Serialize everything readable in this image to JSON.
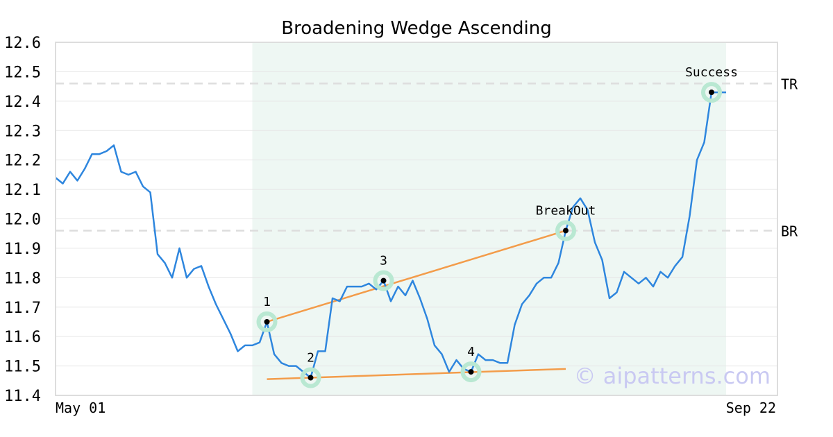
{
  "chart_data": {
    "type": "line",
    "title": "Broadening Wedge Ascending",
    "ylim": [
      11.4,
      12.6
    ],
    "y_ticks": [
      "12.6",
      "12.5",
      "12.4",
      "12.3",
      "12.2",
      "12.1",
      "12.0",
      "11.9",
      "11.8",
      "11.7",
      "11.6",
      "11.5",
      "11.4"
    ],
    "x_tick_labels": [
      "May 01",
      "Sep 22"
    ],
    "grid": true,
    "series": [
      {
        "values": [
          12.14,
          12.12,
          12.16,
          12.13,
          12.17,
          12.22,
          12.22,
          12.23,
          12.25,
          12.16,
          12.15,
          12.16,
          12.11,
          12.09,
          11.88,
          11.85,
          11.8,
          11.9,
          11.8,
          11.83,
          11.84,
          11.77,
          11.71,
          11.66,
          11.61,
          11.55,
          11.57,
          11.57,
          11.58,
          11.65,
          11.54,
          11.51,
          11.5,
          11.5,
          11.48,
          11.46,
          11.55,
          11.55,
          11.73,
          11.72,
          11.77,
          11.77,
          11.77,
          11.78,
          11.76,
          11.79,
          11.72,
          11.77,
          11.74,
          11.79,
          11.73,
          11.66,
          11.57,
          11.54,
          11.48,
          11.52,
          11.49,
          11.48,
          11.54,
          11.52,
          11.52,
          11.51,
          11.51,
          11.64,
          11.71,
          11.74,
          11.78,
          11.8,
          11.8,
          11.85,
          11.96,
          12.04,
          12.07,
          12.03,
          11.92,
          11.86,
          11.73,
          11.75,
          11.82,
          11.8,
          11.78,
          11.8,
          11.77,
          11.82,
          11.8,
          11.84,
          11.87,
          12.01,
          12.2,
          12.26,
          12.43,
          12.43,
          12.43
        ]
      }
    ],
    "highlight_range": [
      27,
      92
    ],
    "reference_lines": [
      {
        "label": "TR",
        "value": 12.46
      },
      {
        "label": "BR",
        "value": 11.96
      }
    ],
    "points": [
      {
        "label": "1",
        "index": 29,
        "value": 11.65
      },
      {
        "label": "2",
        "index": 35,
        "value": 11.46
      },
      {
        "label": "3",
        "index": 45,
        "value": 11.79
      },
      {
        "label": "4",
        "index": 57,
        "value": 11.48
      },
      {
        "label": "BreakOut",
        "index": 70,
        "value": 11.96
      },
      {
        "label": "Success",
        "index": 90,
        "value": 12.43
      }
    ],
    "trendlines": [
      {
        "from": [
          29,
          11.65
        ],
        "to": [
          70,
          11.96
        ]
      },
      {
        "from": [
          29,
          11.455
        ],
        "to": [
          70,
          11.49
        ]
      }
    ],
    "watermark": "© aipatterns.com",
    "colors": {
      "line": "#2e86de",
      "trend": "#f39c4a",
      "highlight": "#eef7f3",
      "marker_ring": "#b9e8d2",
      "grid": "#e6e6e6",
      "reference": "#dddddd",
      "watermark": "#c9c9f2"
    }
  }
}
